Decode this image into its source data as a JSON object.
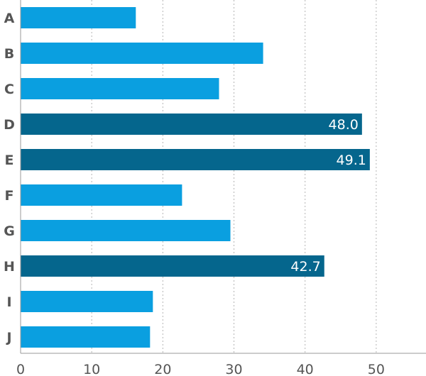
{
  "chart_data": {
    "type": "bar",
    "orientation": "horizontal",
    "categories": [
      "A",
      "B",
      "C",
      "D",
      "E",
      "F",
      "G",
      "H",
      "I",
      "J"
    ],
    "values": [
      16.2,
      34.1,
      27.9,
      48.0,
      49.1,
      22.7,
      29.5,
      42.7,
      18.6,
      18.2
    ],
    "value_labels": [
      "",
      "",
      "",
      "48.0",
      "49.1",
      "",
      "",
      "42.7",
      "",
      ""
    ],
    "highlighted": [
      false,
      false,
      false,
      true,
      true,
      false,
      false,
      true,
      false,
      false
    ],
    "x_ticks": [
      "0",
      "10",
      "20",
      "30",
      "40",
      "50"
    ],
    "xlim": [
      0,
      57
    ],
    "grid": true,
    "title": "",
    "xlabel": "",
    "ylabel": "",
    "colors": {
      "default": "#0a9fe0",
      "highlight": "#05668d",
      "value_label": "#ffffff",
      "axis_text": "#555555"
    }
  }
}
